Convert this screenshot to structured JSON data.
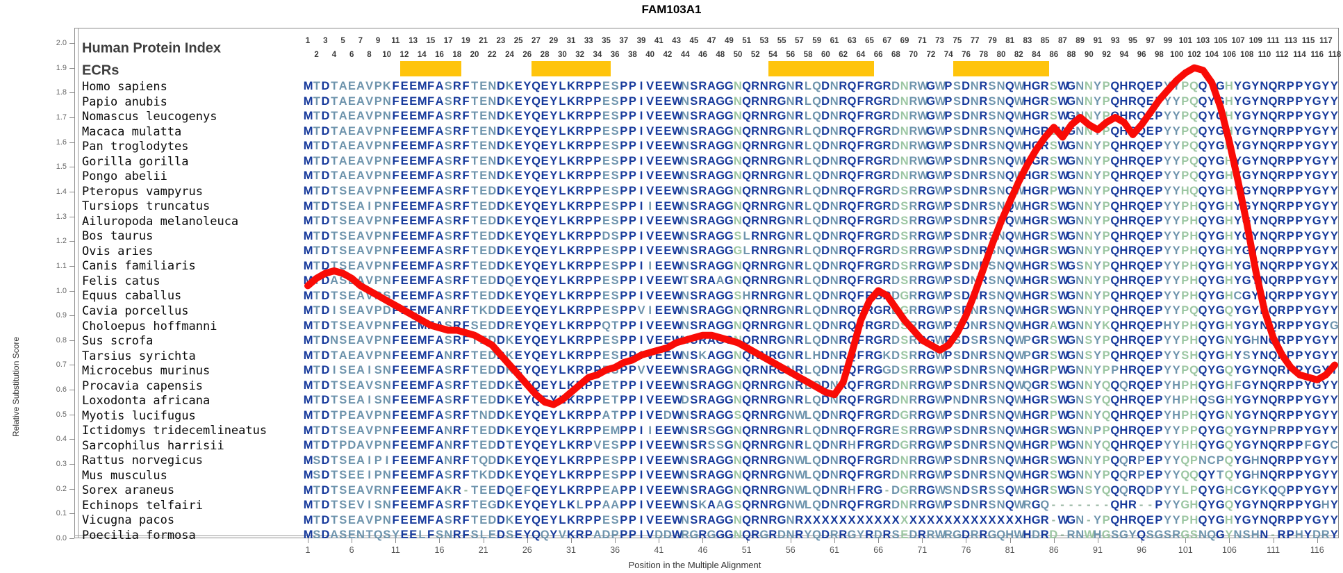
{
  "title": "FAM103A1",
  "labels": {
    "human_protein_index": "Human Protein Index",
    "ecrs": "ECRs"
  },
  "y_axis": {
    "title": "Relative Substitution Score",
    "min": 0.0,
    "max": 2.0,
    "step": 0.1,
    "tick_labels": [
      "2.0",
      "1.9",
      "1.8",
      "1.7",
      "1.6",
      "1.5",
      "1.4",
      "1.3",
      "1.2",
      "1.1",
      "1.0",
      "0.9",
      "0.8",
      "0.7",
      "0.6",
      "0.5",
      "0.4",
      "0.3",
      "0.2",
      "0.1",
      "0.0"
    ]
  },
  "x_axis": {
    "title": "Position in the Multiple Alignment",
    "ticks": [
      1,
      6,
      11,
      16,
      21,
      26,
      31,
      36,
      41,
      46,
      51,
      56,
      61,
      66,
      71,
      76,
      81,
      86,
      91,
      96,
      101,
      106,
      111,
      116
    ]
  },
  "alignment": {
    "num_columns": 118,
    "column_numbers_note": "odd numbers on upper row, even numbers on lower row, 1-118",
    "ecr_bars": [
      {
        "start": 12,
        "end": 18
      },
      {
        "start": 27,
        "end": 35
      },
      {
        "start": 54,
        "end": 65
      },
      {
        "start": 75,
        "end": 85
      }
    ],
    "green_columns": [
      50,
      69,
      86,
      90,
      92,
      101,
      102,
      106
    ],
    "steel_columns": [
      2,
      4,
      5,
      6,
      7,
      8,
      9,
      10,
      17,
      20,
      21,
      22,
      24,
      35,
      36,
      44,
      56,
      58,
      59,
      61,
      68,
      70,
      73,
      75,
      77,
      79,
      80,
      82,
      89,
      91,
      99,
      100
    ],
    "species": [
      {
        "name": "Homo sapiens",
        "seq": "MTDTAEAVPKFEEMFASRFTENDKEYQEYLKRPPESPPIVEEWNSRAGGNQRNRGNRLQDNRQFRGRDNRWGWPSDNRSNQWHGRSWGNNYPQHRQEPYYPQQYGHYGYNQRPPYGYY"
      },
      {
        "name": "Papio anubis",
        "seq": "MTDTAEAVPNFEEMFASRFTENDKEYQEYLKRPPESPPIVEEWNSRAGGNQRNRGNRLQDNRQFRGRDNRWGWPSDNRSNQWHGRSWGNNYPQHRQEPYYPQQYGHYGYNQRPPYGYY"
      },
      {
        "name": "Nomascus leucogenys",
        "seq": "MTDTAEAVPNFEEMFASRFTENDKEYQEYLKRPPESPPIVEEWNSRAGGNQRNRGNRLQDNRQFRGRDNRWGWPSDNRSNQWHGRSWGNNYPQHRQEPYYPQQYGHYGYNQRPPYGYY"
      },
      {
        "name": "Macaca mulatta",
        "seq": "MTDTAEAVPNFEEMFASRFTENDKEYQEYLKRPPESPPIVEEWNSRAGGNQRNRGNRLQDNRQFRGRDNRWGWPSDNRSNQWHGRSWGNNYPQHRQEPYYPQQYGHYGYNQRPPYGYY"
      },
      {
        "name": "Pan troglodytes",
        "seq": "MTDTAEAVPNFEEMFASRFTENDKEYQEYLKRPPESPPIVEEWNSRAGGNQRNRGNRLQDNRQFRGRDNRWGWPSDNRSNQWHGRSWGNNYPQHRQEPYYPQQYGHYGYNQRPPYGYY"
      },
      {
        "name": "Gorilla gorilla",
        "seq": "MTDTAEAVPNFEEMFASRFTENDKEYQEYLKRPPESPPIVEEWNSRAGGNQRNRGNRLQDNRQFRGRDNRWGWPSDNRSNQWHGRSWGNNYPQHRQEPYYPQQYGHYGYNQRPPYGYY"
      },
      {
        "name": "Pongo abelii",
        "seq": "MTDTAEAVPNFEEMFASRFTENDKEYQEYLKRPPESPPIVEEWNSRAGGNQRNRGNRLQDNRQFRGRDNRWGWPSDNRSNQWHGRSWGNNYPQHRQEPYYPQQYGHYGYNQRPPYGYY"
      },
      {
        "name": "Pteropus vampyrus",
        "seq": "MTDTSEAVPNFEEMFASRFTEDDKEYQEYLKRPPESPPIVEEWNSRAGGNQRNRGNRLQDNRQFRGRDSRRGWPSDNRSNQWHGRPWGNNYPQHRQEPYYHQQYGHYGYNQRPPYGYY"
      },
      {
        "name": "Tursiops truncatus",
        "seq": "MTDTSEAIPNFEEMFASRFTEDDKEYQEYLKRPPESPPIIEEWNSRAGGNQRNRGNRLQDNRQFRGRDSRRGWPSDNRSNQWHGRSWGNNYPQHRQEPYYPHQYGHYGYNQRPPYGYY"
      },
      {
        "name": "Ailuropoda melanoleuca",
        "seq": "MTDTSEAVPNFEEMFASRFTEDDKEYQEYLKRPPESPPIVEEWNSRAGGNQRNRGNRLQDNRQFRGRDSRRGWPSDNRSNQWHGRSWGNNYPQHRQEPYYPHQYGHYGYNQRPPYGYY"
      },
      {
        "name": "Bos taurus",
        "seq": "MTDTSEAVPNFEEMFASRFTEDDKEYQEYLKRPPDSPPIVEEWNSRAGGSLRNRGNRLQDNRQFRGRDSRRGWPSDNRSNQWHGRSWGNNYPQHRQEPYYPHQYGHYGYNQRPPYGYY"
      },
      {
        "name": "Ovis aries",
        "seq": "MTDTSEAVPNFEEMFASRFTEDDKEYQEYLKRPPESPPIVEEWNSRAGGGLRNRGNRLQDNRQFRGRDSRRGWPSDNRSNQWHGRSWGNNYPQHRQEPYYPHQYGHYGYNQRPPYGYY"
      },
      {
        "name": "Canis familiaris",
        "seq": "MTDTSEAVPNFEEMFASRFTEDDKEYQEYLKRPPESPPIIEEWNSRAGGNQRNRGNRLQDNRQFRGRDSRRGWPSDNRSNQWHGRSWGSNYPQHRQEPYYPHQYGHYGYNQRPPYGYX"
      },
      {
        "name": "Felis catus",
        "seq": "MTDASEAVPNFEEMFASRFTEDDQEYQEYLKRPPESPPIVEEWTSRAAGNQRNRGNRLQDNRQFRGRDSRRGWPSDNRSNQWHGRSWGNNYPQHRQEPYYPHQYGHYGYNQRPPYGYY"
      },
      {
        "name": "Equus caballus",
        "seq": "MTDTSEAVPSFEEMFASRFTEDDKEYQEYLKRPPESPPIVEEWNSRAGGSHRNRGNRLQDNRQFRGRDGRRGWPSDNRSNQWHGRSWGNNYPQHRQEPYYPHQYGHCGYNQRPPYGYY"
      },
      {
        "name": "Cavia porcellus",
        "seq": "MTDISEAVPDFEEMFANRFTKDDEEYQEYLKRPPESPPVIEEWNSRAGGNQRNRGNRLQDNRQFRGRDGRRGWPSDNRSNQWHGRSWGNNYPQHRQEPYYPQQYGQYGYNQRPPYGYY"
      },
      {
        "name": "Choloepus hoffmanni",
        "seq": "MTDTSEAVPNFEEMFASRFSEDDREYQEYLKRPPQTPPIVEEWNSRAGGNQRNRGNRLQDNRQFRGRDSRRGWPSDNRSNQWHGRAWGNNYKQHRQEPHYPHQYGHYGYNQRPPYGYG"
      },
      {
        "name": "Sus scrofa",
        "seq": "MTDNSEAVPNFEEMFASRFTEDDKEYQEYLKRPPESPPIVEEWNSRAGGNQRNRGNRLQDNRQFRGRDSRRGWPSDSRSNQWPGRSWGNSYPQHRQEPYYPHQYGNYGHNQRPPYGYY"
      },
      {
        "name": "Tarsius syrichta",
        "seq": "MTDTAEAVPNFEEMFANRFTEDDKEYQEYLKRPPESPPIVEEWNSKAGGNQRNRGNRLHDNRQFRGKDSRRGWPSDNRSNQWPGRSWGNSYPQHRQEPYYSHQYGHYSYNQRPPYGYY"
      },
      {
        "name": "Microcebus murinus",
        "seq": "MTDISEAISNFEEMFASRFTEDDKEYQEYLKRPPESPPVVEEWNSRAGGNQRNRGNRLQDNRQFRGGDSRRGWPSDNRSNQWHGRPWGNNYPPHRQEPYYPQQYGQYGYNQRPPYGYY"
      },
      {
        "name": "Procavia capensis",
        "seq": "MTDTSEAVSNFEEMFASRFTEDDKEYQEYLKRPPETPPIVEEWNSRAGGNQRNRGNRLQDNRQFRGRDNRRGWPSDNRSNQWQGRSWGNNYQQQRQEPYHPHQYGHFGYNQRPPYGYY"
      },
      {
        "name": "Loxodonta africana",
        "seq": "MTDTSEAISNFEEMFASRFTEDDKEYQEYLKRPPETPPIVEEWDSRAGGNQRNRGNRLQDNRQFRGRDNRRGWPNDNRSNQWHGRSWGNSYQQHRQEPYHPHQSGHYGYNQRPPYGYY"
      },
      {
        "name": "Myotis lucifugus",
        "seq": "MTDTPEAVPNFEEMFASRFTNDDKEYQEYLKRPPATPPIVEDWNSRAGGSQRNRGNWLQDNRQFRGRDGRRGWPSDNRSNQWHGRPWGNNYQQHRQEPYHPHQYGNYGYNQRPPYGYY"
      },
      {
        "name": "Ictidomys tridecemlineatus",
        "seq": "MTDTSEAVPNFEEMFANRFTEDDKEYQEYLKRPPEMPPIIEEWNSRSGGNQRNRGNRLQDNRQFRGRESRRGWPSDNRSNQWHGRSWGNNPPQHRQEPYYPPQYGQYGYNPRPPYGYY"
      },
      {
        "name": "Sarcophilus harrisii",
        "seq": "MTDTPDAVPNFEEMFANRFTEDDTEYQEYLKRPVESPPIVEEWNSRSSGNQRNRGNRLQDNRHFRGRDGRRGWPSDNRSNQWHGRPWGNNYQQHRQEPYYHHQYGQYGYNQRPPFGYC"
      },
      {
        "name": "Rattus norvegicus",
        "seq": "MSDTSEAIPIFEEMFANRFTQDDKEYQEYLKRPPESPPIVEEWNSRAGGNQRNRGNWLQDNRQFRGRDNRRGWPSDNRSNQWHGRSWGNNYPQQRPEPYYQPNCPQYGHNQRPPYGYY"
      },
      {
        "name": "Mus musculus",
        "seq": "MSDTSEEIPNFEEMFASRFTKDDKEYQEYLKRPPESPPIVEEWNSRAGGNQRNRGNWLQDNRQFRGRDNRRGWPSDNRSNQWHGRSWGNNYPQQRPEPYYQQQYTQYGHNQRPPYGYY"
      },
      {
        "name": "Sorex araneus",
        "seq": "MTDTSEAVRNFEEMFAKR-TEEDQEFQEYLKRPPEAPPIVEEWNSRAGGNQRNRGNWLQDNRHFRG-DGRRGWSNDSRSSQWHGRSWGNSYQQQRQDPYYLPQYGHCGYKQQPPYGYY"
      },
      {
        "name": "Echinops telfairi",
        "seq": "MTDTSEVISNFEEMFASRFTEGDKEYQEYLKLPPAAPPIVEEWNSKAAGSQRNRGNWLQDNRQFRGRDNRRGWPSDNRSNQWRGQ-------QHR--PYYGHQYGQYGYNQRPPYGHY"
      },
      {
        "name": "Vicugna pacos",
        "seq": "MTDTSEAVPNFEEMFASRFTEDDKEYQEYLKRPPESPPIVEEWNSRAGGNQRNRGNRXXXXXXXXXXXXXXXXXXXXXXXXXHGR-WGN-YPQHRQEPYYPHQYGHYGYNQRPPYGYY"
      },
      {
        "name": "Poecilia formosa",
        "seq": "MSDASENTQSYEELFSNRFSLEDSEYQQYVKRPADPPPIVDDWRGRGGGNQRGRDNRYQDRRGYRDRSEDRRWRGDRRGQHWHDRD-RNWHGSGYQSGSRGSNQGYNSHN-RPHYDRY"
      }
    ]
  },
  "chart_data": {
    "type": "line",
    "title": "FAM103A1",
    "xlabel": "Position in the Multiple Alignment",
    "ylabel": "Relative Substitution Score",
    "xlim": [
      1,
      118
    ],
    "ylim": [
      0.0,
      2.0
    ],
    "grid": false,
    "legend": "none",
    "series": [
      {
        "name": "relative-substitution-score",
        "color": "#f90b06",
        "points": [
          [
            1,
            1.02
          ],
          [
            2,
            1.05
          ],
          [
            3,
            1.07
          ],
          [
            4,
            1.08
          ],
          [
            5,
            1.07
          ],
          [
            6,
            1.05
          ],
          [
            7,
            1.02
          ],
          [
            8,
            1.0
          ],
          [
            9,
            0.98
          ],
          [
            10,
            0.96
          ],
          [
            11,
            0.94
          ],
          [
            12,
            0.92
          ],
          [
            13,
            0.9
          ],
          [
            14,
            0.88
          ],
          [
            15,
            0.86
          ],
          [
            16,
            0.85
          ],
          [
            17,
            0.84
          ],
          [
            18,
            0.84
          ],
          [
            19,
            0.83
          ],
          [
            20,
            0.82
          ],
          [
            21,
            0.8
          ],
          [
            22,
            0.78
          ],
          [
            23,
            0.74
          ],
          [
            24,
            0.7
          ],
          [
            25,
            0.66
          ],
          [
            26,
            0.62
          ],
          [
            27,
            0.58
          ],
          [
            28,
            0.55
          ],
          [
            29,
            0.54
          ],
          [
            30,
            0.56
          ],
          [
            31,
            0.59
          ],
          [
            32,
            0.62
          ],
          [
            33,
            0.65
          ],
          [
            34,
            0.66
          ],
          [
            35,
            0.68
          ],
          [
            36,
            0.69
          ],
          [
            37,
            0.71
          ],
          [
            38,
            0.72
          ],
          [
            39,
            0.74
          ],
          [
            40,
            0.75
          ],
          [
            41,
            0.76
          ],
          [
            42,
            0.77
          ],
          [
            43,
            0.79
          ],
          [
            44,
            0.8
          ],
          [
            45,
            0.81
          ],
          [
            46,
            0.82
          ],
          [
            47,
            0.82
          ],
          [
            48,
            0.81
          ],
          [
            49,
            0.8
          ],
          [
            50,
            0.79
          ],
          [
            51,
            0.77
          ],
          [
            52,
            0.75
          ],
          [
            53,
            0.73
          ],
          [
            54,
            0.71
          ],
          [
            55,
            0.69
          ],
          [
            56,
            0.67
          ],
          [
            57,
            0.65
          ],
          [
            58,
            0.63
          ],
          [
            59,
            0.61
          ],
          [
            60,
            0.59
          ],
          [
            61,
            0.58
          ],
          [
            62,
            0.63
          ],
          [
            63,
            0.75
          ],
          [
            64,
            0.88
          ],
          [
            65,
            0.96
          ],
          [
            66,
            1.0
          ],
          [
            67,
            0.98
          ],
          [
            68,
            0.93
          ],
          [
            69,
            0.88
          ],
          [
            70,
            0.84
          ],
          [
            71,
            0.8
          ],
          [
            72,
            0.78
          ],
          [
            73,
            0.76
          ],
          [
            74,
            0.78
          ],
          [
            75,
            0.83
          ],
          [
            76,
            0.9
          ],
          [
            77,
            0.99
          ],
          [
            78,
            1.09
          ],
          [
            79,
            1.19
          ],
          [
            80,
            1.28
          ],
          [
            81,
            1.36
          ],
          [
            82,
            1.44
          ],
          [
            83,
            1.51
          ],
          [
            84,
            1.57
          ],
          [
            85,
            1.62
          ],
          [
            86,
            1.66
          ],
          [
            87,
            1.62
          ],
          [
            88,
            1.67
          ],
          [
            89,
            1.7
          ],
          [
            90,
            1.67
          ],
          [
            91,
            1.65
          ],
          [
            92,
            1.68
          ],
          [
            93,
            1.7
          ],
          [
            94,
            1.68
          ],
          [
            95,
            1.63
          ],
          [
            96,
            1.67
          ],
          [
            97,
            1.72
          ],
          [
            98,
            1.77
          ],
          [
            99,
            1.81
          ],
          [
            100,
            1.85
          ],
          [
            101,
            1.88
          ],
          [
            102,
            1.9
          ],
          [
            103,
            1.89
          ],
          [
            104,
            1.84
          ],
          [
            105,
            1.74
          ],
          [
            106,
            1.6
          ],
          [
            107,
            1.44
          ],
          [
            108,
            1.27
          ],
          [
            109,
            1.08
          ],
          [
            110,
            0.92
          ],
          [
            111,
            0.81
          ],
          [
            112,
            0.74
          ],
          [
            113,
            0.69
          ],
          [
            114,
            0.66
          ],
          [
            115,
            0.65
          ],
          [
            116,
            0.64
          ],
          [
            117,
            0.66
          ],
          [
            118,
            0.7
          ]
        ]
      }
    ],
    "annotations": {
      "ecr_bars_columns": [
        [
          12,
          18
        ],
        [
          27,
          35
        ],
        [
          54,
          65
        ],
        [
          75,
          85
        ]
      ]
    }
  },
  "colors": {
    "navy": "#16399b",
    "steel": "#6d93ac",
    "green": "#9cc6a2",
    "gap": "#97b6a1",
    "orange": "#ffc40c",
    "red": "#f90b06",
    "numbers": "#3a3a3a",
    "axis_text": "#555555"
  }
}
